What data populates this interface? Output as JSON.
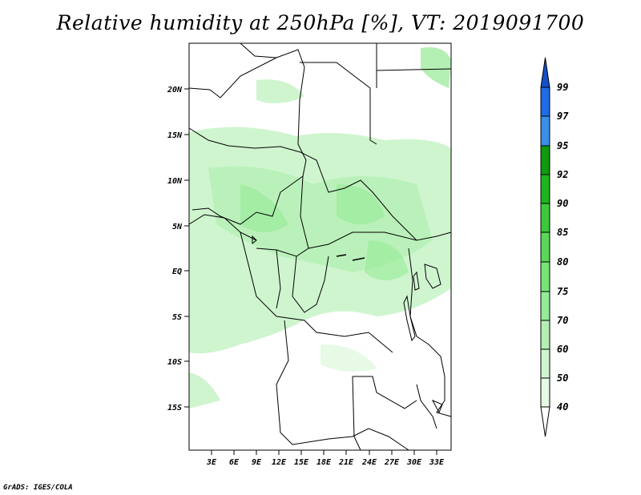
{
  "title": "Relative humidity at 250hPa [%], VT: 2019091700",
  "credit": "GrADS: IGES/COLA",
  "map": {
    "lat_labels": [
      "20N",
      "15N",
      "10N",
      "5N",
      "EQ",
      "5S",
      "10S",
      "15S"
    ],
    "lon_labels": [
      "3E",
      "6E",
      "9E",
      "12E",
      "15E",
      "18E",
      "21E",
      "24E",
      "27E",
      "30E",
      "33E"
    ],
    "land_fill_color": "#ffffff",
    "border_color": "#000000"
  },
  "colorbar": {
    "levels": [
      "40",
      "50",
      "60",
      "70",
      "75",
      "80",
      "85",
      "90",
      "92",
      "95",
      "97",
      "99"
    ],
    "colors": [
      "#ffffff",
      "#e6fae6",
      "#cff5cf",
      "#b4f0b4",
      "#96eb96",
      "#78e478",
      "#5ad75a",
      "#3cc83c",
      "#1eb41e",
      "#0f9a0f",
      "#3a8fe8",
      "#1e6ce6",
      "#1450c8"
    ]
  }
}
